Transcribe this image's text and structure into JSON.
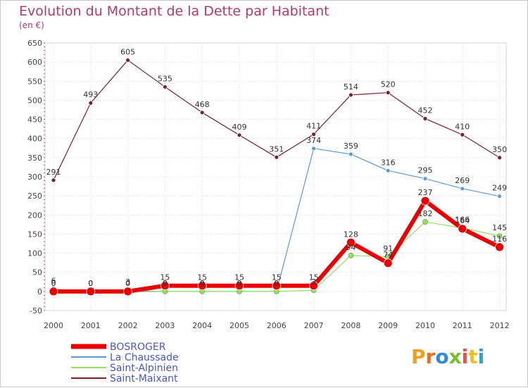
{
  "title": "Evolution du Montant de la Dette par Habitant",
  "unit": "(en €)",
  "logo": "Proxiti",
  "chart_data": {
    "type": "line",
    "title": "Evolution du Montant de la Dette par Habitant",
    "ylabel": "(en €)",
    "xlabel": "",
    "categories": [
      "2000",
      "2001",
      "2002",
      "2003",
      "2004",
      "2005",
      "2006",
      "2007",
      "2008",
      "2009",
      "2010",
      "2011",
      "2012"
    ],
    "ylim": [
      -50,
      650
    ],
    "yticks": [
      -50,
      0,
      50,
      100,
      150,
      200,
      250,
      300,
      350,
      400,
      450,
      500,
      550,
      600,
      650
    ],
    "grid": true,
    "legend": "bottom-left",
    "series": [
      {
        "name": "BOSROGER",
        "color": "#e80000",
        "values": [
          0,
          0,
          0,
          15,
          15,
          15,
          15,
          15,
          128,
          74,
          237,
          164,
          116
        ],
        "labels": [
          "0",
          "0",
          "0",
          "15",
          "15",
          "15",
          "15",
          "15",
          "128",
          "74",
          "237",
          "164",
          "116"
        ]
      },
      {
        "name": "La Chaussade",
        "color": "#5b9bd5",
        "values": [
          0,
          0,
          0,
          0,
          0,
          0,
          0,
          374,
          359,
          316,
          295,
          269,
          249
        ],
        "labels": [
          "0",
          "0",
          "0",
          "0",
          "0",
          "0",
          "0",
          "374",
          "359",
          "316",
          "295",
          "269",
          "249"
        ]
      },
      {
        "name": "Saint-Alpinien",
        "color": "#99dd66",
        "values": [
          6,
          0,
          3,
          0,
          0,
          0,
          0,
          3,
          94,
          91,
          182,
          166,
          145
        ],
        "labels": [
          "6",
          "0",
          "3",
          "0",
          "0",
          "0",
          "0",
          "3",
          "94",
          "91",
          "182",
          "166",
          "145"
        ]
      },
      {
        "name": "Saint-Maixant",
        "color": "#7a1f2b",
        "values": [
          291,
          493,
          605,
          535,
          468,
          409,
          351,
          411,
          514,
          520,
          452,
          410,
          350
        ],
        "labels": [
          "291",
          "493",
          "605",
          "535",
          "468",
          "409",
          "351",
          "411",
          "514",
          "520",
          "452",
          "410",
          "350"
        ]
      }
    ]
  }
}
